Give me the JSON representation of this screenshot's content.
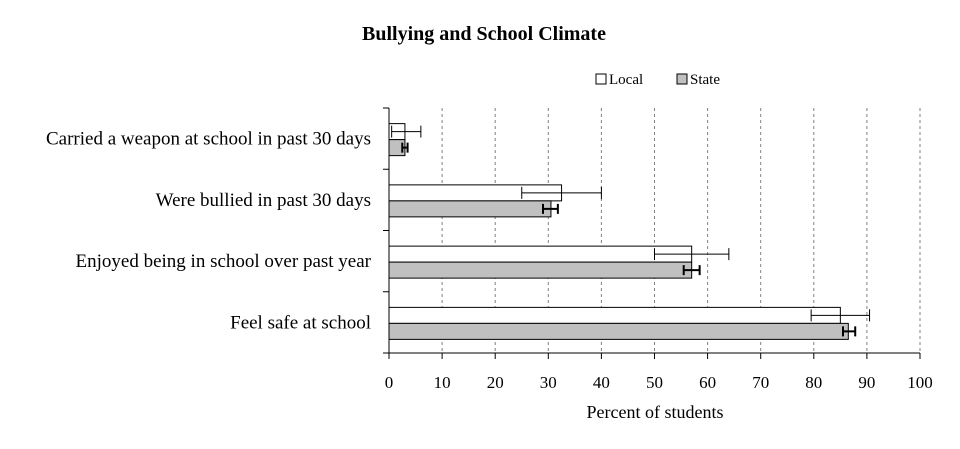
{
  "chart_data": {
    "type": "bar",
    "orientation": "horizontal",
    "title": "Bullying and School Climate",
    "xlabel": "Percent of students",
    "ylabel": "",
    "xlim": [
      0,
      100
    ],
    "xticks": [
      0,
      10,
      20,
      30,
      40,
      50,
      60,
      70,
      80,
      90,
      100
    ],
    "grid": "vertical dashed",
    "legend_position": "top-right",
    "categories": [
      "Carried a weapon at school in past 30 days",
      "Were bullied in past 30 days",
      "Enjoyed being in school over past year",
      "Feel safe at school"
    ],
    "series": [
      {
        "name": "Local",
        "color": "#ffffff",
        "values": [
          3,
          32.5,
          57,
          85
        ],
        "error_low": [
          0.5,
          25,
          50,
          79.5
        ],
        "error_high": [
          6,
          40,
          64,
          90.5
        ]
      },
      {
        "name": "State",
        "color": "#c0c0c0",
        "values": [
          3,
          30.5,
          57,
          86.5
        ],
        "error_low": [
          2.5,
          29,
          55.5,
          85.5
        ],
        "error_high": [
          3.5,
          31.8,
          58.5,
          87.8
        ]
      }
    ]
  }
}
